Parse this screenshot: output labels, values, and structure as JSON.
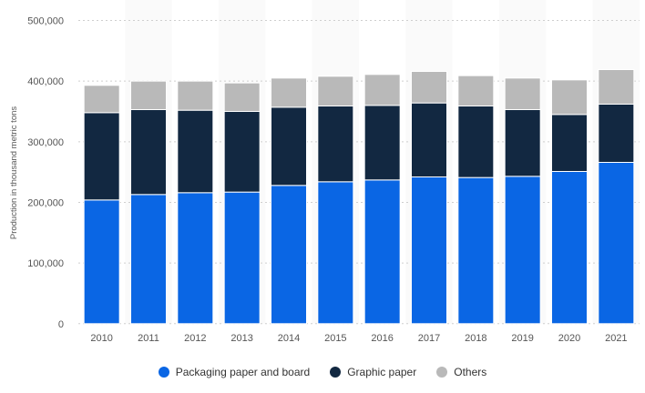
{
  "chart_data": {
    "type": "bar",
    "stacked": true,
    "title": "",
    "xlabel": "",
    "ylabel": "Production in thousand metric tons",
    "ylim": [
      0,
      500000
    ],
    "yticks": [
      "0",
      "100,000",
      "200,000",
      "300,000",
      "400,000",
      "500,000"
    ],
    "ytick_values": [
      0,
      100000,
      200000,
      300000,
      400000,
      500000
    ],
    "categories": [
      "2010",
      "2011",
      "2012",
      "2013",
      "2014",
      "2015",
      "2016",
      "2017",
      "2018",
      "2019",
      "2020",
      "2021"
    ],
    "series": [
      {
        "name": "Packaging paper and board",
        "color": "#0a66e4",
        "values": [
          204000,
          213000,
          216000,
          217000,
          228000,
          234000,
          237000,
          242000,
          241000,
          243000,
          251000,
          266000
        ]
      },
      {
        "name": "Graphic paper",
        "color": "#122841",
        "values": [
          144000,
          140000,
          136000,
          133000,
          129000,
          125000,
          123000,
          122000,
          118000,
          110000,
          94000,
          96000
        ]
      },
      {
        "name": "Others",
        "color": "#b9b9b9",
        "values": [
          45000,
          47000,
          48000,
          47000,
          48000,
          49000,
          51000,
          52000,
          50000,
          52000,
          57000,
          57000
        ]
      }
    ],
    "grid": true,
    "legend_position": "bottom"
  }
}
